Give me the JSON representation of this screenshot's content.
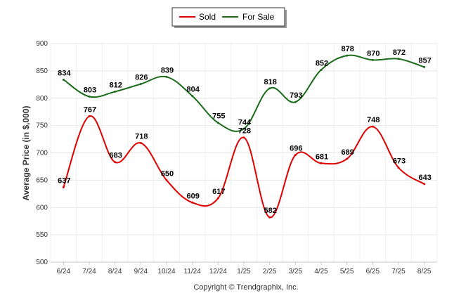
{
  "chart_data": {
    "type": "line",
    "title": "",
    "xlabel": "",
    "ylabel": "Average Price (in $,000)",
    "ylim": [
      500,
      900
    ],
    "yticks": [
      500,
      550,
      600,
      650,
      700,
      750,
      800,
      850,
      900
    ],
    "grid": true,
    "legend_position": "top-center",
    "categories": [
      "6/24",
      "7/24",
      "8/24",
      "9/24",
      "10/24",
      "11/24",
      "12/24",
      "1/25",
      "2/25",
      "3/25",
      "4/25",
      "5/25",
      "6/25",
      "7/25",
      "8/25"
    ],
    "series": [
      {
        "name": "Sold",
        "color": "#e00000",
        "values": [
          637,
          767,
          683,
          718,
          650,
          609,
          617,
          728,
          582,
          696,
          681,
          689,
          748,
          673,
          643
        ]
      },
      {
        "name": "For Sale",
        "color": "#1a6b1a",
        "values": [
          834,
          803,
          812,
          826,
          839,
          804,
          755,
          744,
          818,
          793,
          852,
          878,
          870,
          872,
          857
        ]
      }
    ],
    "footer": "Copyright © Trendgraphix, Inc."
  }
}
